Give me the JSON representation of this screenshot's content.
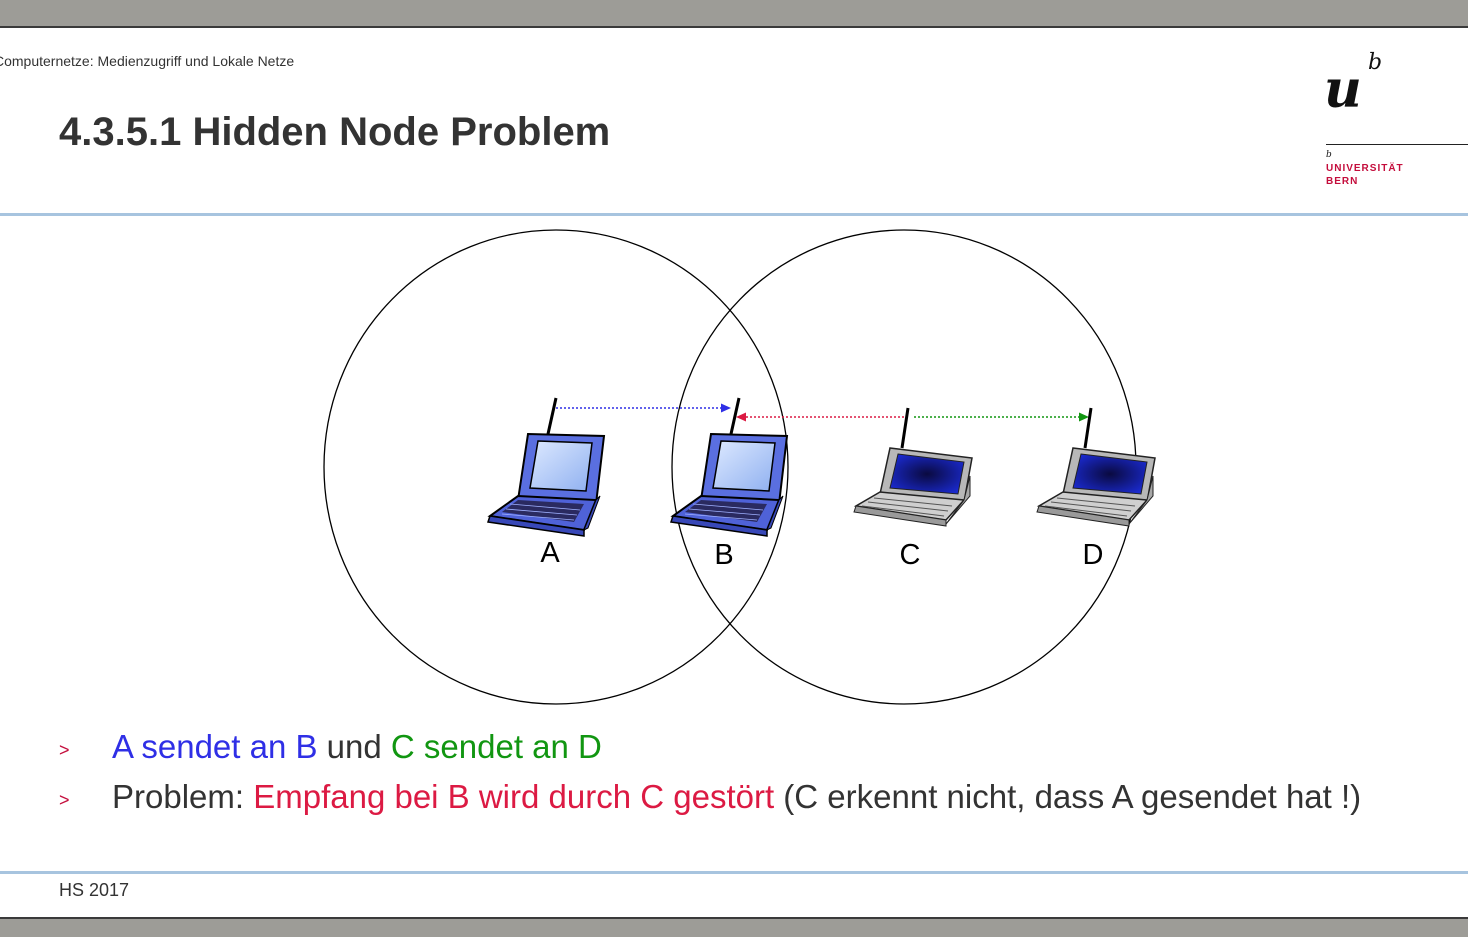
{
  "header": {
    "course": "Computernetze: Medienzugriff und Lokale Netze",
    "title": "4.3.5.1 Hidden Node Problem"
  },
  "logo": {
    "u": "u",
    "b_super": "b",
    "b_small": "b",
    "university": "UNIVERSITÄT",
    "city": "BERN"
  },
  "diagram": {
    "nodes": [
      "A",
      "B",
      "C",
      "D"
    ]
  },
  "bullets": [
    {
      "marker": ">",
      "a_sends": "A sendet an B",
      "und": " und ",
      "c_sends": "C sendet an D"
    },
    {
      "marker": ">",
      "problem": "Problem: ",
      "interference": "Empfang bei B wird durch C gestört",
      "note": " (C erkennt nicht, dass A gesendet hat !)"
    }
  ],
  "footer": {
    "semester": "HS 2017"
  },
  "colors": {
    "blue": "#2f2fe6",
    "green": "#119611",
    "red": "#dc1a43",
    "rule": "#a7c4df"
  }
}
